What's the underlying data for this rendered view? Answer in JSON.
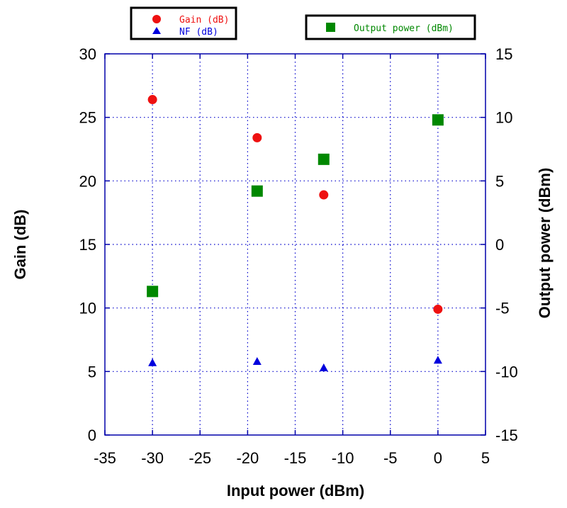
{
  "chart_data": {
    "type": "scatter",
    "xlabel": "Input power (dBm)",
    "ylabel_left": "Gain (dB)",
    "ylabel_right": "Output power (dBm)",
    "xlim": [
      -35,
      5
    ],
    "ylim_left": [
      0,
      30
    ],
    "ylim_right": [
      -15,
      15
    ],
    "x_ticks": [
      "-35",
      "-30",
      "-25",
      "-20",
      "-15",
      "-10",
      "-5",
      "0",
      "5"
    ],
    "y_left_ticks": [
      "0",
      "5",
      "10",
      "15",
      "20",
      "25",
      "30"
    ],
    "y_right_ticks": [
      "-15",
      "-10",
      "-5",
      "0",
      "5",
      "10",
      "15"
    ],
    "grid": true,
    "series": [
      {
        "name": "Gain (dB)",
        "axis": "left",
        "marker": "circle",
        "color": "#ee1111",
        "points": [
          [
            -30,
            26.4
          ],
          [
            -19,
            23.4
          ],
          [
            -12,
            18.9
          ],
          [
            0,
            9.9
          ]
        ]
      },
      {
        "name": "NF (dB)",
        "axis": "left",
        "marker": "triangle",
        "color": "#0000dd",
        "points": [
          [
            -30,
            5.7
          ],
          [
            -19,
            5.8
          ],
          [
            -12,
            5.3
          ],
          [
            0,
            5.9
          ]
        ]
      },
      {
        "name": "Output power (dBm)",
        "axis": "right",
        "marker": "square",
        "color": "#008800",
        "points": [
          [
            -30,
            -3.7
          ],
          [
            -19,
            4.2
          ],
          [
            -12,
            6.7
          ],
          [
            0,
            9.8
          ]
        ]
      }
    ]
  }
}
